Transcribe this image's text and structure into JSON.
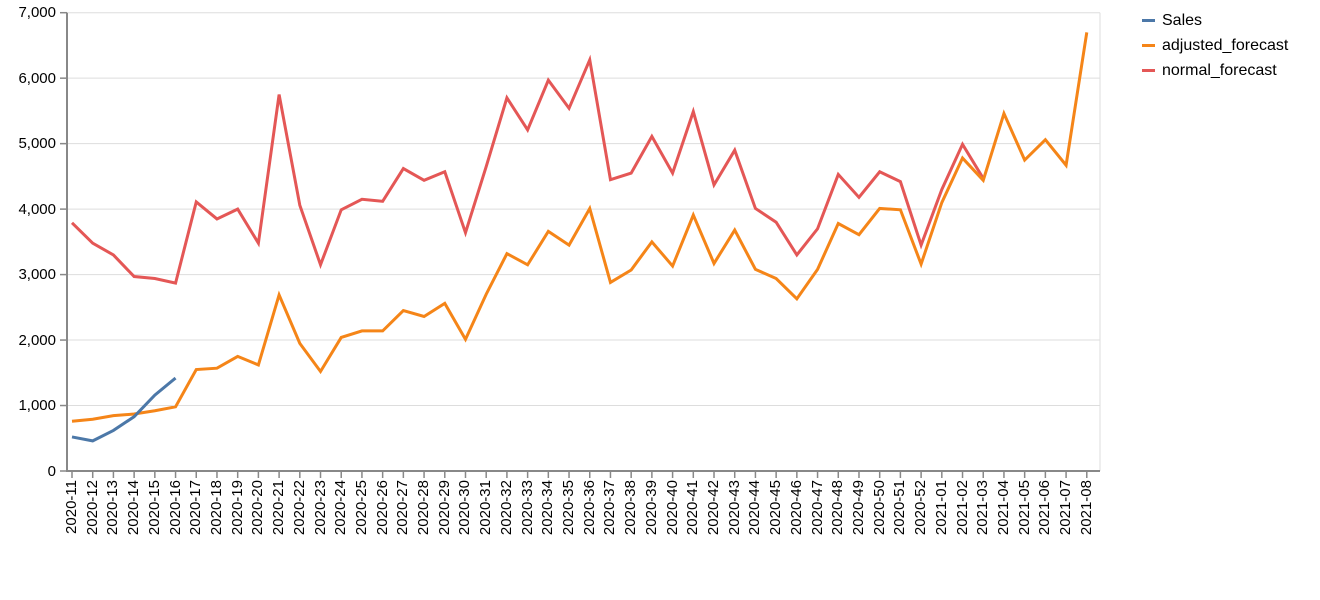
{
  "chart_data": {
    "type": "line",
    "title": "",
    "xlabel": "",
    "ylabel": "",
    "grid": "horizontal",
    "legend_position": "top-right",
    "ylim": [
      0,
      7000
    ],
    "x_tick_rotation": -90,
    "y_ticks": [
      {
        "value": 0,
        "label": "0"
      },
      {
        "value": 1000,
        "label": "1,000"
      },
      {
        "value": 2000,
        "label": "2,000"
      },
      {
        "value": 3000,
        "label": "3,000"
      },
      {
        "value": 4000,
        "label": "4,000"
      },
      {
        "value": 5000,
        "label": "5,000"
      },
      {
        "value": 6000,
        "label": "6,000"
      },
      {
        "value": 7000,
        "label": "7,000"
      }
    ],
    "categories": [
      "2020-11",
      "2020-12",
      "2020-13",
      "2020-14",
      "2020-15",
      "2020-16",
      "2020-17",
      "2020-18",
      "2020-19",
      "2020-20",
      "2020-21",
      "2020-22",
      "2020-23",
      "2020-24",
      "2020-25",
      "2020-26",
      "2020-27",
      "2020-28",
      "2020-29",
      "2020-30",
      "2020-31",
      "2020-32",
      "2020-33",
      "2020-34",
      "2020-35",
      "2020-36",
      "2020-37",
      "2020-38",
      "2020-39",
      "2020-40",
      "2020-41",
      "2020-42",
      "2020-43",
      "2020-44",
      "2020-45",
      "2020-46",
      "2020-47",
      "2020-48",
      "2020-49",
      "2020-50",
      "2020-51",
      "2020-52",
      "2021-01",
      "2021-02",
      "2021-03",
      "2021-04",
      "2021-05",
      "2021-06",
      "2021-07",
      "2021-08"
    ],
    "series": [
      {
        "name": "Sales",
        "color": "#4c78a8",
        "values": [
          520,
          460,
          620,
          830,
          1160,
          1420
        ]
      },
      {
        "name": "adjusted_forecast",
        "color": "#f58518",
        "values": [
          760,
          790,
          845,
          870,
          920,
          980,
          1550,
          1570,
          1750,
          1620,
          2690,
          1950,
          1520,
          2040,
          2140,
          2140,
          2450,
          2360,
          2560,
          2010,
          2700,
          3320,
          3150,
          3660,
          3450,
          4010,
          2880,
          3070,
          3500,
          3130,
          3910,
          3170,
          3680,
          3080,
          2940,
          2630,
          3080,
          3780,
          3610,
          4010,
          3990,
          3160,
          4100,
          4780,
          4440,
          5460,
          4750,
          5060,
          4670,
          6700
        ]
      },
      {
        "name": "normal_forecast",
        "color": "#e45756",
        "values": [
          3790,
          3480,
          3300,
          2970,
          2940,
          2870,
          4110,
          3850,
          4000,
          3480,
          5750,
          4060,
          3150,
          3990,
          4150,
          4120,
          4620,
          4440,
          4570,
          3640,
          4650,
          5700,
          5210,
          5970,
          5540,
          6280,
          4450,
          4550,
          5110,
          4550,
          5490,
          4370,
          4900,
          4010,
          3800,
          3300,
          3700,
          4530,
          4180,
          4570,
          4420,
          3450,
          4300,
          4990,
          4470
        ]
      }
    ],
    "axis_color": "#888888",
    "grid_color": "#dddddd",
    "label_color": "#000000"
  }
}
